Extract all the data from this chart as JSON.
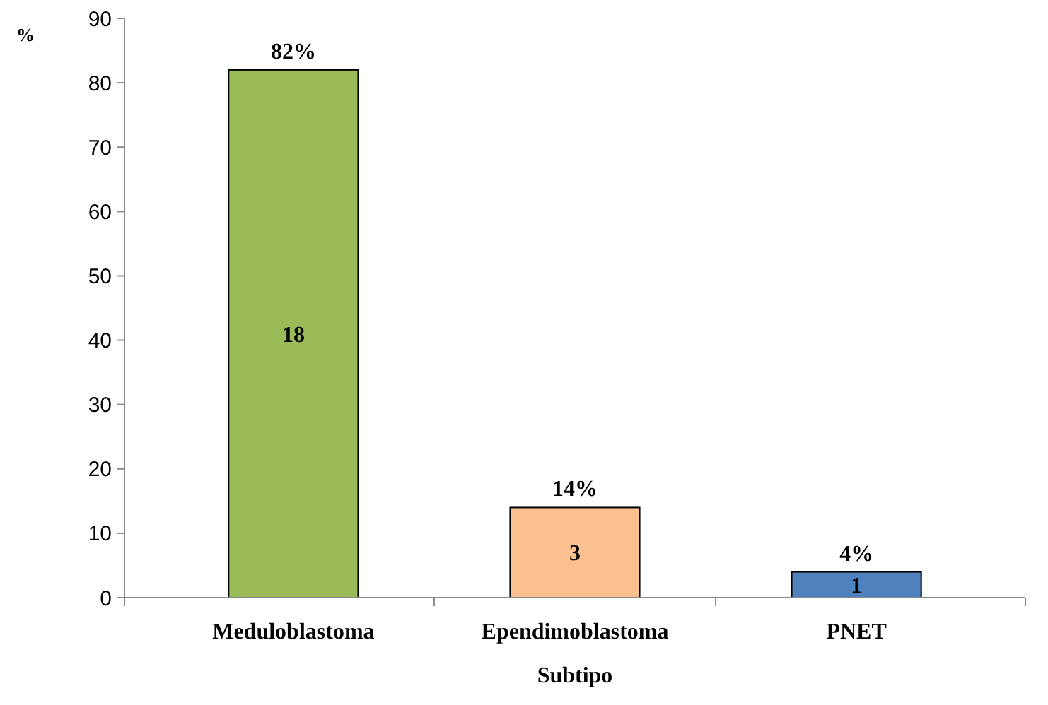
{
  "chart_data": {
    "type": "bar",
    "xlabel": "Subtipo",
    "ylabel": "%",
    "categories": [
      "Meduloblastoma",
      "Ependimoblastoma",
      "PNET"
    ],
    "values": [
      82,
      14,
      4
    ],
    "colors": [
      "#9bbb59",
      "#fac090",
      "#4f81bd"
    ],
    "value_labels": [
      "82%",
      "14%",
      "4%"
    ],
    "annotations": [
      "18",
      "3",
      "1"
    ],
    "ylim": [
      0,
      90
    ],
    "yticks": [
      0,
      10,
      20,
      30,
      40,
      50,
      60,
      70,
      80,
      90
    ],
    "grid": false
  }
}
